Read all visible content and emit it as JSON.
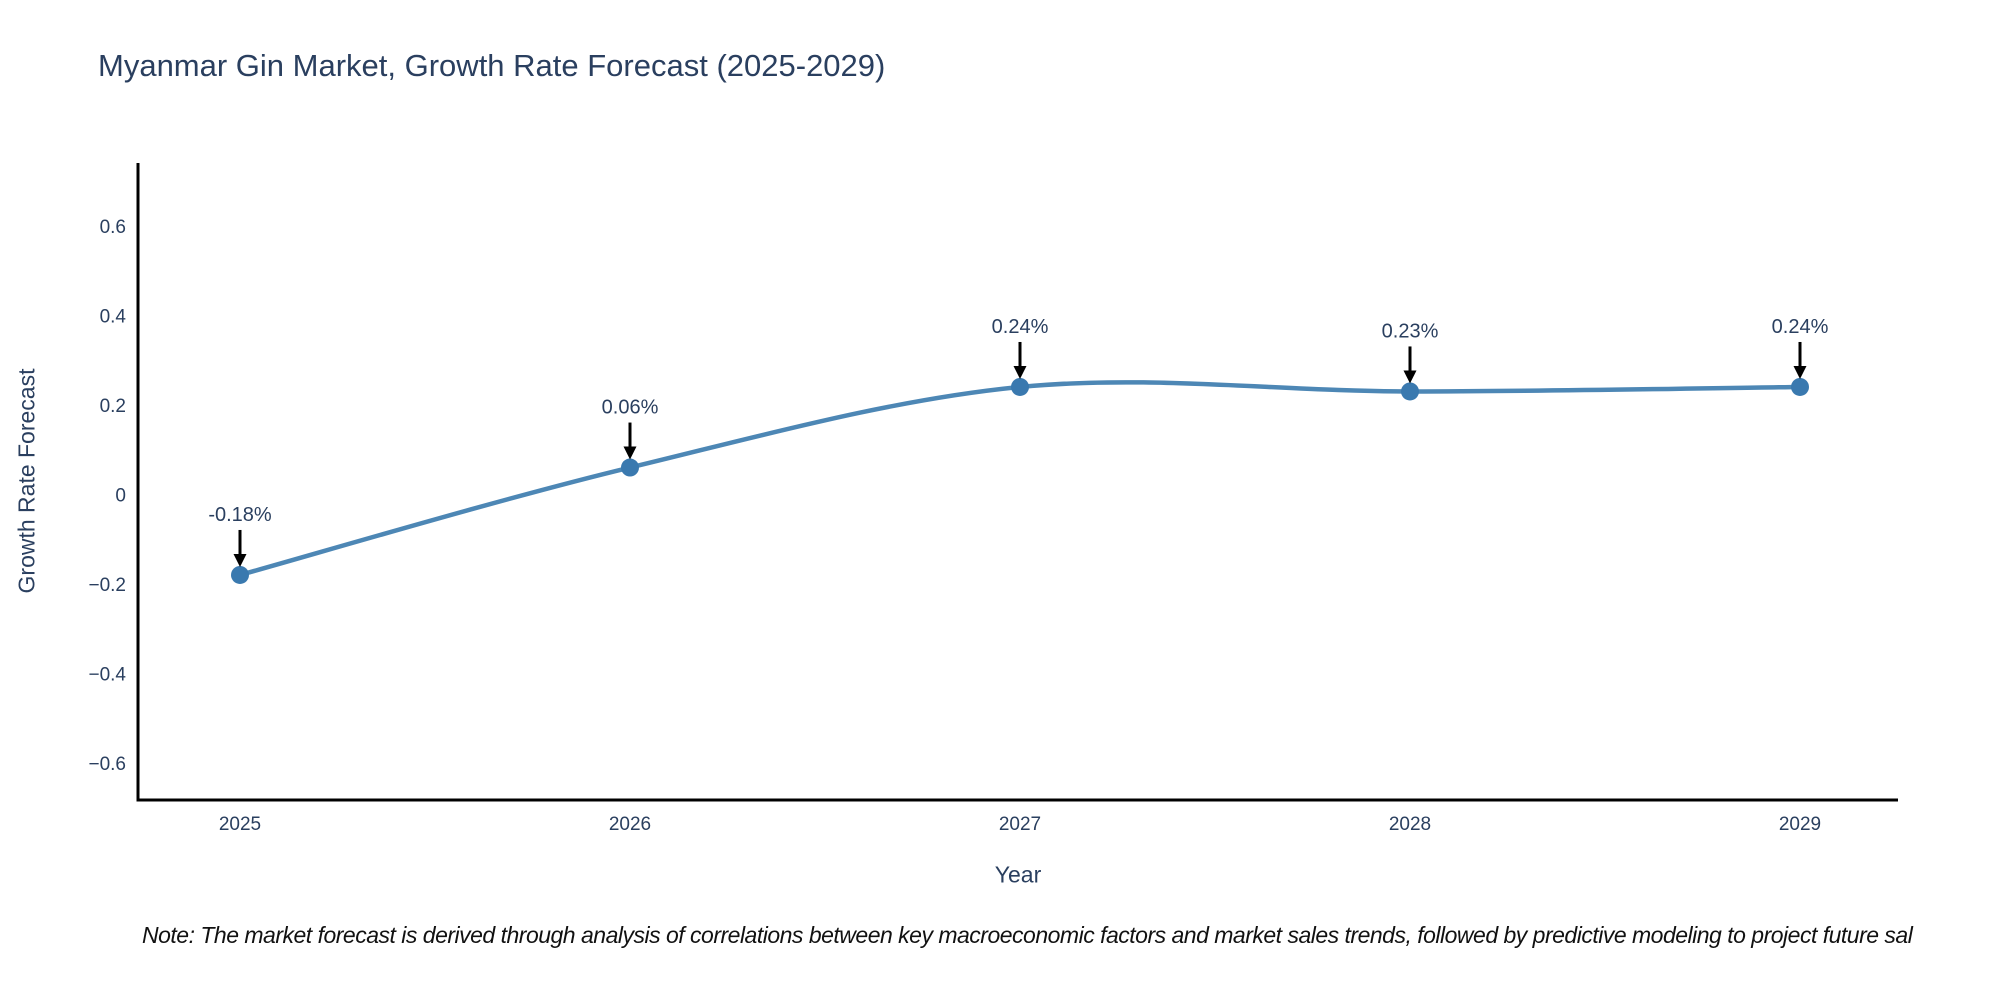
{
  "title": "Myanmar Gin Market, Growth Rate Forecast (2025-2029)",
  "note": "Note: The market forecast is derived through analysis of correlations between key macroeconomic factors and market sales trends, followed by predictive modeling to project future sal",
  "chart_data": {
    "type": "line",
    "title": "Myanmar Gin Market, Growth Rate Forecast (2025-2029)",
    "xlabel": "Year",
    "ylabel": "Growth Rate Forecast",
    "x": [
      2025,
      2026,
      2027,
      2028,
      2029
    ],
    "x_tick_labels": [
      "2025",
      "2026",
      "2027",
      "2028",
      "2029"
    ],
    "series": [
      {
        "name": "Growth Rate Forecast",
        "values": [
          -0.18,
          0.06,
          0.24,
          0.23,
          0.24
        ]
      }
    ],
    "point_labels": [
      "-0.18%",
      "0.06%",
      "0.24%",
      "0.23%",
      "0.24%"
    ],
    "y_ticks": [
      0.6,
      0.4,
      0.2,
      0,
      -0.2,
      -0.4,
      -0.6
    ],
    "y_tick_labels": [
      "0.6",
      "0.4",
      "0.2",
      "0",
      "−0.2",
      "−0.4",
      "−0.6"
    ],
    "ylim": [
      -0.68,
      0.74
    ],
    "xlim": [
      2024.74,
      2029.25
    ],
    "line_shape": "spline",
    "grid": false,
    "legend": "none",
    "colors": {
      "line": "#4d87b5",
      "marker": "#3a79af",
      "axis": "#000000",
      "text": "#2a3f5f",
      "annotation_arrow": "#000000",
      "note_text": "#111111",
      "background": "#ffffff"
    }
  }
}
